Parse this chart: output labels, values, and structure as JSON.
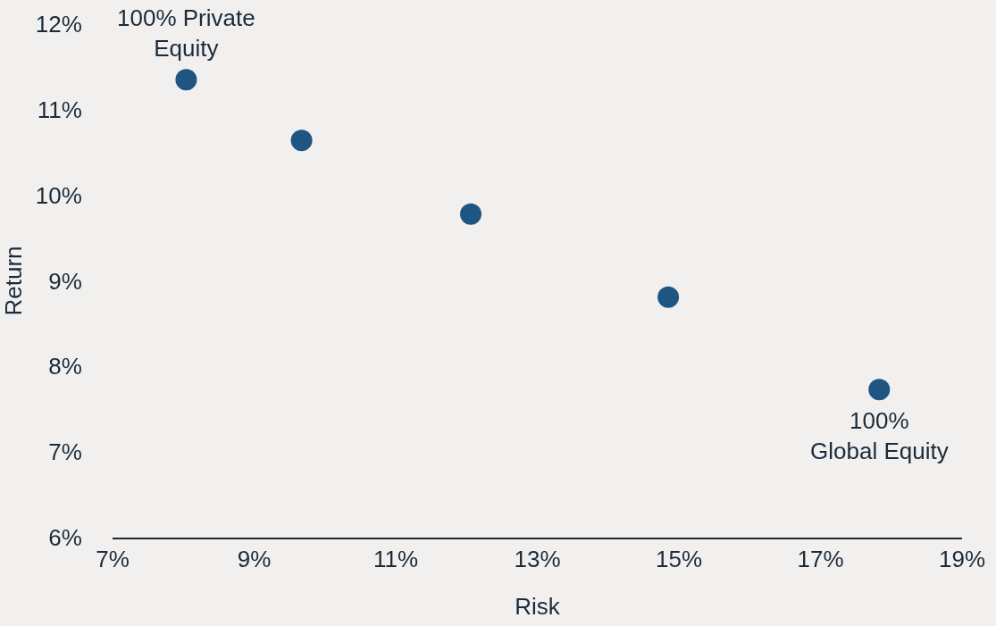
{
  "chart_data": {
    "type": "scatter",
    "xlabel": "Risk",
    "ylabel": "Return",
    "x": [
      8.04,
      9.67,
      12.06,
      14.85,
      17.83
    ],
    "series": [
      {
        "color": "#1f5582",
        "values": [
          11.35,
          10.64,
          9.78,
          8.81,
          7.73
        ]
      }
    ],
    "marker": "circle",
    "grid": false,
    "legend": false,
    "xlim": [
      7,
      19
    ],
    "ylim": [
      6,
      12
    ],
    "xticks": [
      {
        "value": 7,
        "label": "7%"
      },
      {
        "value": 9,
        "label": "9%"
      },
      {
        "value": 11,
        "label": "11%"
      },
      {
        "value": 13,
        "label": "13%"
      },
      {
        "value": 15,
        "label": "15%"
      },
      {
        "value": 17,
        "label": "17%"
      },
      {
        "value": 19,
        "label": "19%"
      }
    ],
    "yticks": [
      {
        "value": 6,
        "label": "6%"
      },
      {
        "value": 7,
        "label": "7%"
      },
      {
        "value": 8,
        "label": "8%"
      },
      {
        "value": 9,
        "label": "9%"
      },
      {
        "value": 10,
        "label": "10%"
      },
      {
        "value": 11,
        "label": "11%"
      },
      {
        "value": 12,
        "label": "12%"
      }
    ],
    "annotations": [
      {
        "text": "100% Private\nEquity",
        "x": 8.04,
        "y": 11.35
      },
      {
        "text": "100%\nGlobal Equity",
        "x": 17.83,
        "y": 7.73
      }
    ]
  }
}
